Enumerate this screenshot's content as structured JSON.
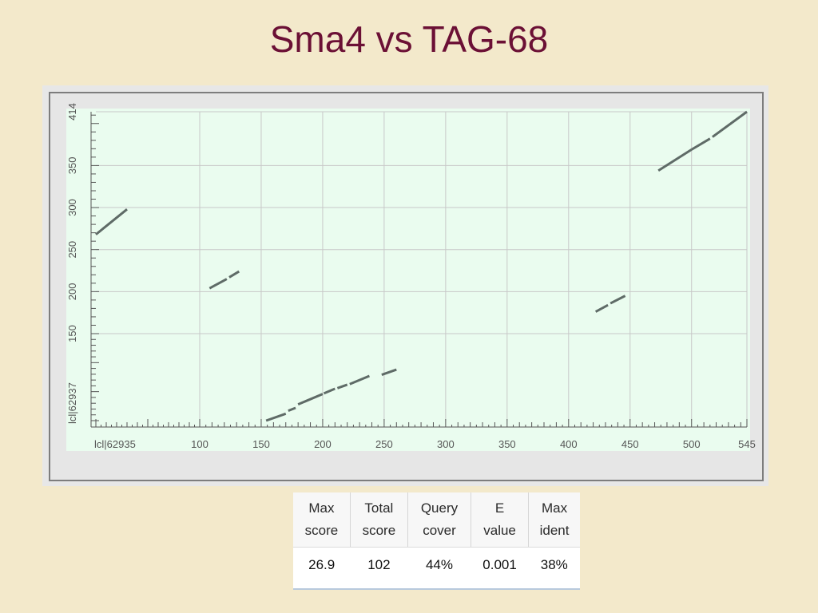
{
  "slide": {
    "title": "Sma4 vs TAG-68"
  },
  "chart_data": {
    "type": "line",
    "chart_kind": "dot plot",
    "grid": true,
    "xlabel": "lcl|62935",
    "ylabel": "lcl|62937",
    "xlim": [
      0,
      545
    ],
    "ylim": [
      0,
      414
    ],
    "x_tick_labels": [
      "lcl|62935",
      "100",
      "150",
      "200",
      "250",
      "300",
      "350",
      "400",
      "450",
      "500",
      "545"
    ],
    "x_tick_values": [
      0,
      100,
      150,
      200,
      250,
      300,
      350,
      400,
      450,
      500,
      545
    ],
    "y_tick_labels": [
      "lcl|62937",
      "150",
      "200",
      "250",
      "300",
      "350",
      "414"
    ],
    "y_tick_values": [
      0,
      150,
      200,
      250,
      300,
      350,
      414
    ],
    "series": [
      {
        "x": [
          0,
          30
        ],
        "y": [
          268,
          298
        ]
      },
      {
        "x": [
          108,
          122
        ],
        "y": [
          204,
          215
        ]
      },
      {
        "x": [
          124,
          132
        ],
        "y": [
          217,
          224
        ]
      },
      {
        "x": [
          154,
          170
        ],
        "y": [
          0,
          12
        ]
      },
      {
        "x": [
          172,
          178
        ],
        "y": [
          17,
          22
        ]
      },
      {
        "x": [
          180,
          200
        ],
        "y": [
          28,
          46
        ]
      },
      {
        "x": [
          201,
          210
        ],
        "y": [
          47,
          55
        ]
      },
      {
        "x": [
          212,
          220
        ],
        "y": [
          56,
          62
        ]
      },
      {
        "x": [
          222,
          238
        ],
        "y": [
          63,
          77
        ]
      },
      {
        "x": [
          248,
          260
        ],
        "y": [
          79,
          88
        ]
      },
      {
        "x": [
          422,
          432
        ],
        "y": [
          176,
          184
        ]
      },
      {
        "x": [
          434,
          446
        ],
        "y": [
          186,
          195
        ]
      },
      {
        "x": [
          473,
          500
        ],
        "y": [
          344,
          369
        ]
      },
      {
        "x": [
          500,
          515
        ],
        "y": [
          369,
          382
        ]
      },
      {
        "x": [
          517,
          545
        ],
        "y": [
          384,
          414
        ]
      }
    ]
  },
  "stats_table": {
    "headers": [
      {
        "line1": "Max",
        "line2": "score"
      },
      {
        "line1": "Total",
        "line2": "score"
      },
      {
        "line1": "Query",
        "line2": "cover"
      },
      {
        "line1": "E",
        "line2": "value"
      },
      {
        "line1": "Max",
        "line2": "ident"
      }
    ],
    "row": [
      "26.9",
      "102",
      "44%",
      "0.001",
      "38%"
    ]
  },
  "colors": {
    "title": "#6b1035",
    "background": "#f3e9cb",
    "plot_bg": "#eafcef",
    "segment": "#5f6b67",
    "grid": "#c8c8c8"
  }
}
